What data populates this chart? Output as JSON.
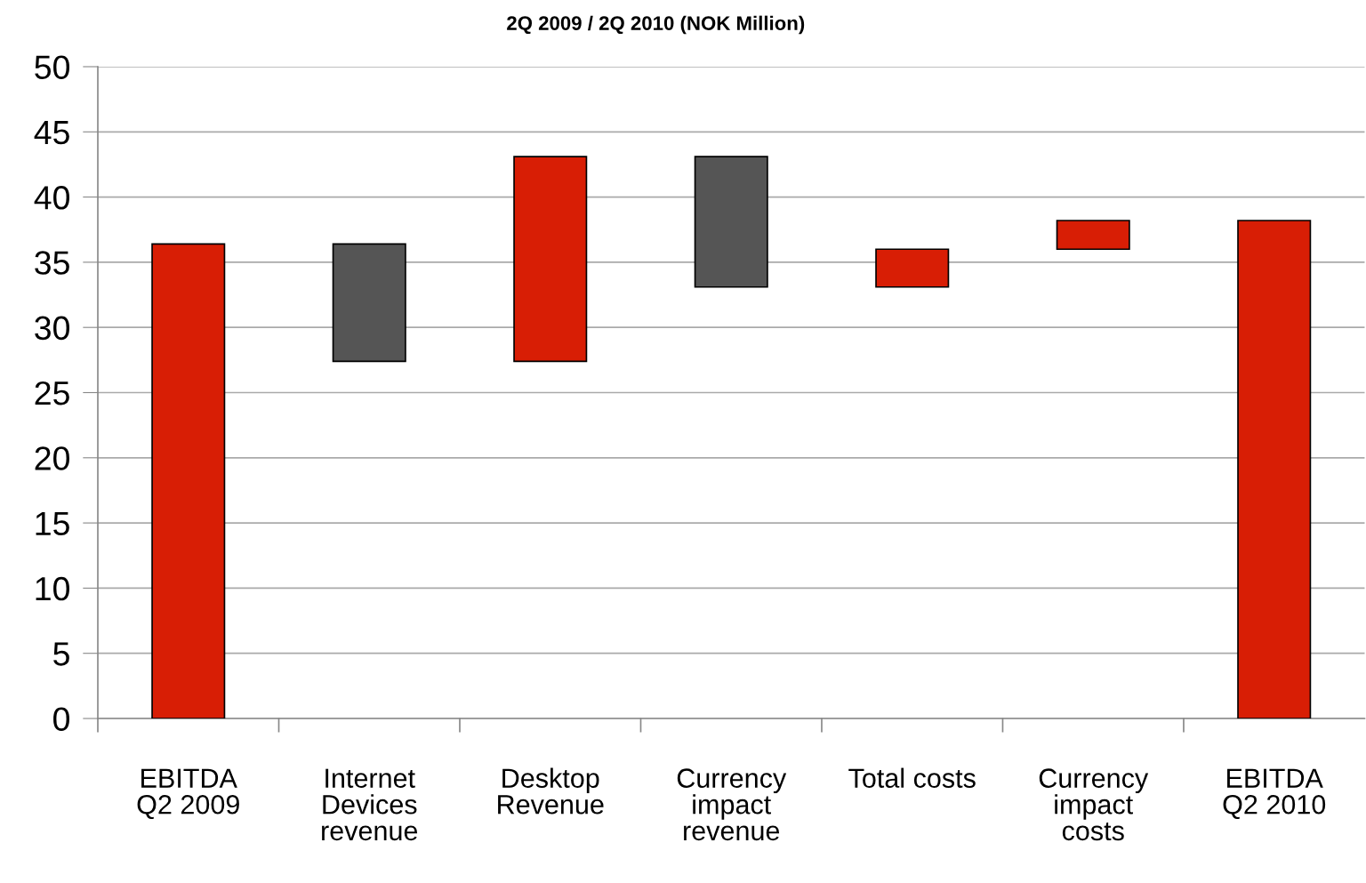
{
  "chart_data": {
    "type": "bar",
    "title": "2Q 2009 / 2Q 2010 (NOK Million)",
    "categories": [
      "EBITDA\nQ2 2009",
      "Internet\nDevices\nrevenue",
      "Desktop\nRevenue",
      "Currency\nimpact\nrevenue",
      "Total costs",
      "Currency\nimpact\ncosts",
      "EBITDA\nQ2 2010"
    ],
    "values": [
      36.4,
      9.0,
      15.7,
      10.0,
      2.9,
      2.2,
      38.2
    ],
    "base": [
      0,
      27.4,
      27.4,
      33.1,
      33.1,
      36.0,
      0
    ],
    "colors": [
      "#d81e05",
      "#555555",
      "#d81e05",
      "#555555",
      "#d81e05",
      "#d81e05",
      "#d81e05"
    ],
    "ylim": [
      0,
      50
    ],
    "yticks": [
      0,
      5,
      10,
      15,
      20,
      25,
      30,
      35,
      40,
      45,
      50
    ],
    "grid": "y",
    "legend": false
  }
}
